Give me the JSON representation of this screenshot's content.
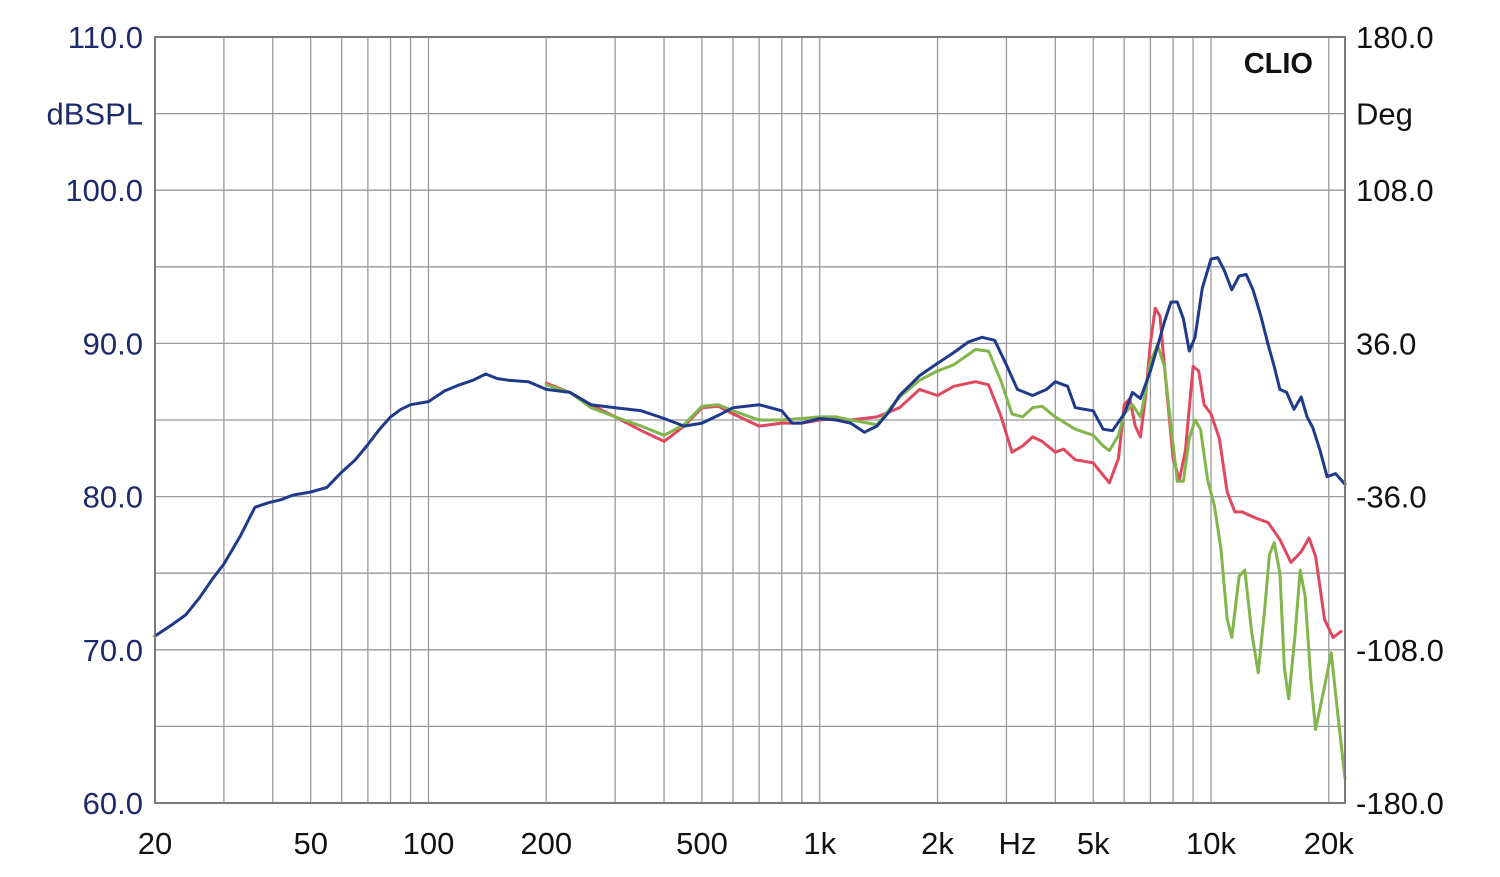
{
  "chart_data": {
    "type": "line",
    "brand_label": "CLIO",
    "x_scale": "log",
    "x_unit_label": "Hz",
    "xlim": [
      20,
      22000
    ],
    "x_ticks": [
      {
        "value": 20,
        "label": "20"
      },
      {
        "value": 50,
        "label": "50"
      },
      {
        "value": 100,
        "label": "100"
      },
      {
        "value": 200,
        "label": "200"
      },
      {
        "value": 500,
        "label": "500"
      },
      {
        "value": 1000,
        "label": "1k"
      },
      {
        "value": 2000,
        "label": "2k"
      },
      {
        "value": 5000,
        "label": "5k"
      },
      {
        "value": 10000,
        "label": "10k"
      },
      {
        "value": 20000,
        "label": "20k"
      }
    ],
    "y_left": {
      "unit_label": "dBSPL",
      "range": [
        60,
        110
      ],
      "ticks": [
        "60.0",
        "70.0",
        "80.0",
        "90.0",
        "100.0",
        "110.0"
      ]
    },
    "y_right": {
      "unit_label": "Deg",
      "range": [
        -180,
        180
      ],
      "ticks": [
        "-180.0",
        "-108.0",
        "-36.0",
        "36.0",
        "108.0",
        "180.0"
      ]
    },
    "grid": true,
    "series": [
      {
        "color": "#e0485f",
        "points": [
          [
            200,
            87.4
          ],
          [
            230,
            86.8
          ],
          [
            260,
            86.0
          ],
          [
            300,
            85.2
          ],
          [
            350,
            84.3
          ],
          [
            400,
            83.6
          ],
          [
            450,
            84.6
          ],
          [
            500,
            85.8
          ],
          [
            550,
            85.9
          ],
          [
            600,
            85.4
          ],
          [
            700,
            84.6
          ],
          [
            800,
            84.8
          ],
          [
            900,
            84.8
          ],
          [
            1000,
            85.0
          ],
          [
            1100,
            85.1
          ],
          [
            1200,
            85.0
          ],
          [
            1400,
            85.2
          ],
          [
            1600,
            85.8
          ],
          [
            1800,
            87.0
          ],
          [
            2000,
            86.6
          ],
          [
            2200,
            87.2
          ],
          [
            2500,
            87.5
          ],
          [
            2700,
            87.3
          ],
          [
            2900,
            85.3
          ],
          [
            3100,
            82.9
          ],
          [
            3300,
            83.3
          ],
          [
            3500,
            83.9
          ],
          [
            3700,
            83.6
          ],
          [
            4000,
            82.9
          ],
          [
            4200,
            83.1
          ],
          [
            4500,
            82.4
          ],
          [
            5000,
            82.2
          ],
          [
            5300,
            81.4
          ],
          [
            5500,
            80.9
          ],
          [
            5800,
            82.5
          ],
          [
            6000,
            86.0
          ],
          [
            6200,
            86.4
          ],
          [
            6400,
            84.6
          ],
          [
            6600,
            83.9
          ],
          [
            6800,
            86.5
          ],
          [
            7000,
            90.0
          ],
          [
            7200,
            92.3
          ],
          [
            7400,
            91.8
          ],
          [
            7700,
            87.0
          ],
          [
            8000,
            82.5
          ],
          [
            8300,
            81.1
          ],
          [
            8600,
            83.0
          ],
          [
            9000,
            88.5
          ],
          [
            9300,
            88.2
          ],
          [
            9600,
            86.0
          ],
          [
            10000,
            85.4
          ],
          [
            10500,
            83.8
          ],
          [
            11000,
            80.3
          ],
          [
            11500,
            79.0
          ],
          [
            12000,
            79.0
          ],
          [
            12500,
            78.8
          ],
          [
            13000,
            78.6
          ],
          [
            14000,
            78.3
          ],
          [
            15000,
            77.2
          ],
          [
            16000,
            75.7
          ],
          [
            17000,
            76.4
          ],
          [
            17800,
            77.3
          ],
          [
            18500,
            76.1
          ],
          [
            19500,
            72.0
          ],
          [
            20500,
            70.8
          ],
          [
            21500,
            71.2
          ]
        ]
      },
      {
        "color": "#82b54b",
        "points": [
          [
            200,
            87.3
          ],
          [
            230,
            86.8
          ],
          [
            260,
            85.8
          ],
          [
            300,
            85.2
          ],
          [
            350,
            84.6
          ],
          [
            400,
            84.0
          ],
          [
            450,
            84.7
          ],
          [
            500,
            85.9
          ],
          [
            550,
            86.0
          ],
          [
            600,
            85.6
          ],
          [
            700,
            85.0
          ],
          [
            800,
            85.0
          ],
          [
            900,
            85.1
          ],
          [
            1000,
            85.2
          ],
          [
            1100,
            85.2
          ],
          [
            1200,
            85.0
          ],
          [
            1400,
            84.7
          ],
          [
            1600,
            86.5
          ],
          [
            1800,
            87.6
          ],
          [
            2000,
            88.2
          ],
          [
            2200,
            88.6
          ],
          [
            2500,
            89.6
          ],
          [
            2700,
            89.5
          ],
          [
            2900,
            87.6
          ],
          [
            3100,
            85.4
          ],
          [
            3300,
            85.2
          ],
          [
            3500,
            85.8
          ],
          [
            3700,
            85.9
          ],
          [
            4000,
            85.2
          ],
          [
            4500,
            84.4
          ],
          [
            5000,
            84.0
          ],
          [
            5300,
            83.3
          ],
          [
            5500,
            83.0
          ],
          [
            5800,
            84.0
          ],
          [
            6000,
            85.4
          ],
          [
            6300,
            86.0
          ],
          [
            6600,
            85.2
          ],
          [
            6800,
            86.8
          ],
          [
            7000,
            88.8
          ],
          [
            7300,
            89.9
          ],
          [
            7600,
            88.5
          ],
          [
            7900,
            84.6
          ],
          [
            8200,
            81.0
          ],
          [
            8500,
            81.0
          ],
          [
            8800,
            83.8
          ],
          [
            9100,
            85.0
          ],
          [
            9400,
            84.4
          ],
          [
            9800,
            81.1
          ],
          [
            10200,
            79.4
          ],
          [
            10600,
            76.6
          ],
          [
            11000,
            72.0
          ],
          [
            11300,
            70.8
          ],
          [
            11800,
            74.8
          ],
          [
            12200,
            75.2
          ],
          [
            12700,
            71.2
          ],
          [
            13200,
            68.5
          ],
          [
            13700,
            72.5
          ],
          [
            14100,
            76.2
          ],
          [
            14500,
            77.0
          ],
          [
            15000,
            75.0
          ],
          [
            15400,
            68.8
          ],
          [
            15800,
            66.8
          ],
          [
            16400,
            71.0
          ],
          [
            16900,
            75.2
          ],
          [
            17400,
            73.5
          ],
          [
            18000,
            68.0
          ],
          [
            18500,
            64.8
          ],
          [
            19500,
            67.6
          ],
          [
            20300,
            69.8
          ],
          [
            21000,
            66.2
          ],
          [
            22000,
            61.6
          ]
        ]
      },
      {
        "color": "#1f3a8a",
        "points": [
          [
            20,
            70.9
          ],
          [
            22,
            71.6
          ],
          [
            24,
            72.3
          ],
          [
            26,
            73.4
          ],
          [
            28,
            74.6
          ],
          [
            30,
            75.6
          ],
          [
            33,
            77.4
          ],
          [
            36,
            79.3
          ],
          [
            39,
            79.6
          ],
          [
            42,
            79.8
          ],
          [
            45,
            80.1
          ],
          [
            50,
            80.3
          ],
          [
            55,
            80.6
          ],
          [
            60,
            81.6
          ],
          [
            65,
            82.4
          ],
          [
            70,
            83.4
          ],
          [
            75,
            84.4
          ],
          [
            80,
            85.2
          ],
          [
            85,
            85.7
          ],
          [
            90,
            86.0
          ],
          [
            100,
            86.2
          ],
          [
            110,
            86.9
          ],
          [
            120,
            87.3
          ],
          [
            130,
            87.6
          ],
          [
            140,
            88.0
          ],
          [
            150,
            87.7
          ],
          [
            160,
            87.6
          ],
          [
            180,
            87.5
          ],
          [
            200,
            87.0
          ],
          [
            230,
            86.8
          ],
          [
            260,
            86.0
          ],
          [
            300,
            85.8
          ],
          [
            350,
            85.6
          ],
          [
            400,
            85.1
          ],
          [
            450,
            84.6
          ],
          [
            500,
            84.8
          ],
          [
            550,
            85.3
          ],
          [
            600,
            85.8
          ],
          [
            700,
            86.0
          ],
          [
            800,
            85.6
          ],
          [
            850,
            84.8
          ],
          [
            900,
            84.8
          ],
          [
            1000,
            85.1
          ],
          [
            1100,
            85.0
          ],
          [
            1200,
            84.8
          ],
          [
            1300,
            84.2
          ],
          [
            1400,
            84.6
          ],
          [
            1500,
            85.5
          ],
          [
            1600,
            86.6
          ],
          [
            1800,
            87.9
          ],
          [
            2000,
            88.7
          ],
          [
            2200,
            89.4
          ],
          [
            2400,
            90.1
          ],
          [
            2600,
            90.4
          ],
          [
            2800,
            90.2
          ],
          [
            3000,
            88.6
          ],
          [
            3200,
            87.0
          ],
          [
            3500,
            86.6
          ],
          [
            3800,
            87.0
          ],
          [
            4000,
            87.5
          ],
          [
            4300,
            87.2
          ],
          [
            4500,
            85.8
          ],
          [
            5000,
            85.6
          ],
          [
            5300,
            84.4
          ],
          [
            5600,
            84.3
          ],
          [
            6000,
            85.4
          ],
          [
            6300,
            86.8
          ],
          [
            6600,
            86.4
          ],
          [
            7000,
            88.2
          ],
          [
            7300,
            89.8
          ],
          [
            7600,
            91.4
          ],
          [
            7900,
            92.7
          ],
          [
            8200,
            92.7
          ],
          [
            8500,
            91.6
          ],
          [
            8800,
            89.5
          ],
          [
            9100,
            90.4
          ],
          [
            9500,
            93.6
          ],
          [
            10000,
            95.5
          ],
          [
            10400,
            95.6
          ],
          [
            10800,
            94.8
          ],
          [
            11300,
            93.5
          ],
          [
            11800,
            94.4
          ],
          [
            12300,
            94.5
          ],
          [
            12800,
            93.5
          ],
          [
            13400,
            91.8
          ],
          [
            14000,
            89.9
          ],
          [
            14500,
            88.5
          ],
          [
            15000,
            87.0
          ],
          [
            15600,
            86.8
          ],
          [
            16300,
            85.7
          ],
          [
            17000,
            86.5
          ],
          [
            17600,
            85.2
          ],
          [
            18200,
            84.5
          ],
          [
            19000,
            83.0
          ],
          [
            19800,
            81.3
          ],
          [
            20800,
            81.5
          ],
          [
            22000,
            80.8
          ]
        ]
      }
    ]
  }
}
